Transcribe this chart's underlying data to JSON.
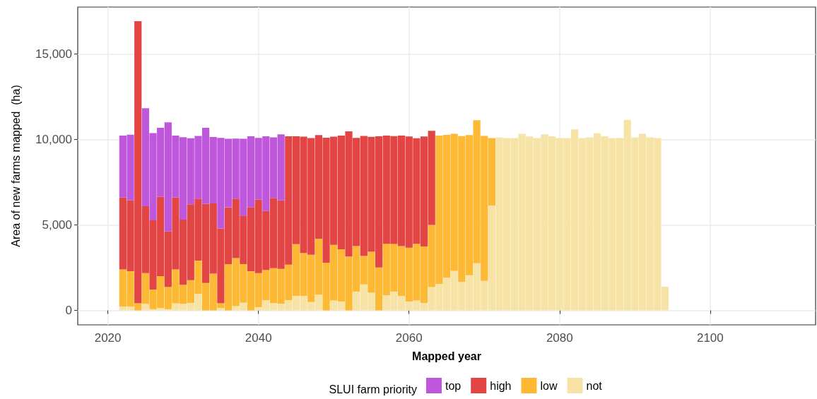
{
  "chart_data": {
    "type": "bar",
    "stacked": true,
    "xlabel": "Mapped year",
    "ylabel": "Area of new farms mapped  (ha)",
    "legend_title": "SLUI farm priority",
    "legend": "bottom",
    "grid": true,
    "x": [
      2022,
      2023,
      2024,
      2025,
      2026,
      2027,
      2028,
      2029,
      2030,
      2031,
      2032,
      2033,
      2034,
      2035,
      2036,
      2037,
      2038,
      2039,
      2040,
      2041,
      2042,
      2043,
      2044,
      2045,
      2046,
      2047,
      2048,
      2049,
      2050,
      2051,
      2052,
      2053,
      2054,
      2055,
      2056,
      2057,
      2058,
      2059,
      2060,
      2061,
      2062,
      2063,
      2064,
      2065,
      2066,
      2067,
      2068,
      2069,
      2070,
      2071,
      2072,
      2073,
      2074,
      2075,
      2076,
      2077,
      2078,
      2079,
      2080,
      2081,
      2082,
      2083,
      2084,
      2085,
      2086,
      2087,
      2088,
      2089,
      2090,
      2091,
      2092,
      2093,
      2094
    ],
    "series": [
      {
        "name": "not",
        "color": "#f6e3a5",
        "values": [
          230,
          230,
          0,
          380,
          70,
          140,
          70,
          410,
          380,
          440,
          960,
          0,
          0,
          140,
          0,
          250,
          450,
          0,
          190,
          600,
          430,
          390,
          600,
          850,
          850,
          490,
          920,
          0,
          580,
          520,
          0,
          1100,
          1520,
          1040,
          0,
          890,
          1100,
          850,
          520,
          580,
          430,
          1370,
          1550,
          1920,
          2320,
          1660,
          2060,
          2760,
          1730,
          6140,
          10120,
          10080,
          10080,
          10330,
          10170,
          10080,
          10300,
          10190,
          10080,
          10080,
          10590,
          10080,
          10120,
          10360,
          10190,
          10080,
          10080,
          11150,
          10110,
          10330,
          10120,
          10080,
          1390
        ]
      },
      {
        "name": "low",
        "color": "#fdb933",
        "values": [
          2170,
          2060,
          410,
          1800,
          1150,
          1870,
          1300,
          1990,
          1120,
          1330,
          1950,
          1600,
          2150,
          270,
          2700,
          2810,
          2260,
          2290,
          1990,
          1760,
          2040,
          2040,
          2080,
          3020,
          2510,
          2760,
          3280,
          2790,
          3250,
          3060,
          3150,
          2660,
          1660,
          2390,
          2510,
          3010,
          2790,
          2910,
          3150,
          3320,
          3310,
          3630,
          8680,
          8350,
          8010,
          8540,
          8200,
          8370,
          8480,
          3940,
          0,
          0,
          0,
          0,
          0,
          0,
          0,
          0,
          0,
          0,
          0,
          0,
          0,
          0,
          0,
          0,
          0,
          0,
          0,
          0,
          0,
          0,
          0
        ]
      },
      {
        "name": "high",
        "color": "#e34444",
        "values": [
          4200,
          4150,
          16510,
          3920,
          4050,
          4630,
          3250,
          4200,
          3810,
          4440,
          3630,
          4630,
          4110,
          4380,
          3330,
          3480,
          2840,
          3750,
          4300,
          3460,
          4110,
          4010,
          7510,
          6320,
          6800,
          6830,
          6060,
          7310,
          6330,
          6650,
          7320,
          6330,
          7030,
          6720,
          7680,
          6330,
          6310,
          6470,
          6500,
          6170,
          6430,
          5510,
          0,
          0,
          0,
          0,
          0,
          0,
          0,
          0,
          0,
          0,
          0,
          0,
          0,
          0,
          0,
          0,
          0,
          0,
          0,
          0,
          0,
          0,
          0,
          0,
          0,
          0,
          0,
          0,
          0,
          0,
          0
        ]
      },
      {
        "name": "top",
        "color": "#bf57dc",
        "values": [
          3630,
          3840,
          0,
          5730,
          5100,
          4040,
          6380,
          3630,
          4820,
          3860,
          3670,
          4450,
          3880,
          5300,
          4010,
          3510,
          4490,
          4150,
          3610,
          4370,
          3540,
          3860,
          0,
          0,
          0,
          0,
          0,
          0,
          0,
          0,
          0,
          0,
          0,
          0,
          0,
          0,
          0,
          0,
          0,
          0,
          0,
          0,
          0,
          0,
          0,
          0,
          0,
          0,
          0,
          0,
          0,
          0,
          0,
          0,
          0,
          0,
          0,
          0,
          0,
          0,
          0,
          0,
          0,
          0,
          0,
          0,
          0,
          0,
          0,
          0,
          0,
          0,
          0
        ]
      }
    ],
    "xlim": [
      2016,
      2114
    ],
    "xticks": [
      2020,
      2040,
      2060,
      2080,
      2100
    ],
    "ylim": [
      -845,
      17745
    ],
    "yticks": [
      0,
      {
        "value": 5000,
        "label": "5,000"
      },
      {
        "value": 10000,
        "label": "10,000"
      },
      {
        "value": 15000,
        "label": "15,000"
      }
    ]
  }
}
